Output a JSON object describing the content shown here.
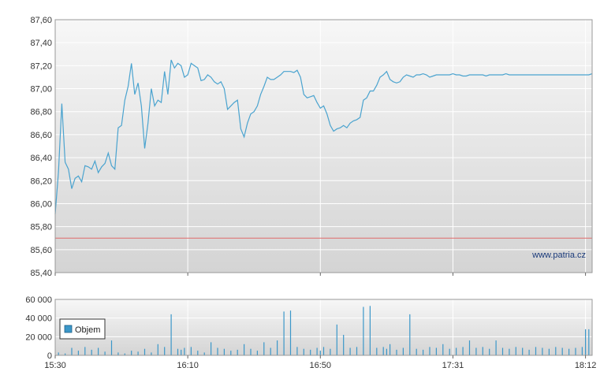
{
  "watermark": "www.patria.cz",
  "colors": {
    "price_line": "#4aa3cf",
    "reference_line": "#e06a6a",
    "volume_bar": "#3b97c9",
    "grid": "#ffffff",
    "plot_top": "#f7f7f7",
    "plot_bottom": "#d4d4d4"
  },
  "chart_data": [
    {
      "type": "line",
      "title": "",
      "xlabel": "",
      "ylabel": "",
      "ylim": [
        85.4,
        87.6
      ],
      "yticks": [
        "87,60",
        "87,40",
        "87,20",
        "87,00",
        "86,80",
        "86,60",
        "86,40",
        "86,20",
        "86,00",
        "85,80",
        "85,60",
        "85,40"
      ],
      "ytick_values": [
        87.6,
        87.4,
        87.2,
        87.0,
        86.8,
        86.6,
        86.4,
        86.2,
        86.0,
        85.8,
        85.6,
        85.4
      ],
      "xlim": [
        0,
        162
      ],
      "xtick_positions": [
        0,
        40,
        80,
        120,
        160
      ],
      "reference_value": 85.7,
      "grid": true,
      "series": [
        {
          "x": [
            0,
            1,
            2,
            3,
            4,
            5,
            6,
            7,
            8,
            9,
            10,
            11,
            12,
            13,
            14,
            15,
            16,
            17,
            18,
            19,
            20,
            21,
            22,
            23,
            24,
            25,
            26,
            27,
            28,
            29,
            30,
            31,
            32,
            33,
            34,
            35,
            36,
            37,
            38,
            39,
            40,
            41,
            42,
            43,
            44,
            45,
            46,
            47,
            48,
            49,
            50,
            51,
            52,
            53,
            54,
            55,
            56,
            57,
            58,
            59,
            60,
            61,
            62,
            63,
            64,
            65,
            66,
            67,
            68,
            69,
            70,
            71,
            72,
            73,
            74,
            75,
            76,
            77,
            78,
            79,
            80,
            81,
            82,
            83,
            84,
            85,
            86,
            87,
            88,
            89,
            90,
            91,
            92,
            93,
            94,
            95,
            96,
            97,
            98,
            99,
            100,
            101,
            102,
            103,
            104,
            105,
            106,
            107,
            108,
            109,
            110,
            111,
            112,
            113,
            114,
            115,
            116,
            117,
            118,
            119,
            120,
            121,
            122,
            123,
            124,
            125,
            126,
            127,
            128,
            129,
            130,
            131,
            132,
            133,
            134,
            135,
            136,
            137,
            138,
            139,
            140,
            141,
            142,
            143,
            144,
            145,
            146,
            147,
            148,
            149,
            150,
            151,
            152,
            153,
            154,
            155,
            156,
            157,
            158,
            159,
            160,
            161,
            162
          ],
          "values": [
            85.91,
            86.28,
            86.87,
            86.36,
            86.3,
            86.13,
            86.22,
            86.24,
            86.19,
            86.33,
            86.32,
            86.3,
            86.37,
            86.27,
            86.32,
            86.35,
            86.44,
            86.33,
            86.3,
            86.66,
            86.68,
            86.9,
            87.02,
            87.22,
            86.95,
            87.05,
            86.85,
            86.48,
            86.7,
            87.0,
            86.85,
            86.9,
            86.88,
            87.15,
            86.95,
            87.25,
            87.18,
            87.22,
            87.2,
            87.1,
            87.12,
            87.22,
            87.2,
            87.18,
            87.07,
            87.08,
            87.12,
            87.1,
            87.06,
            87.04,
            87.06,
            87.0,
            86.82,
            86.85,
            86.88,
            86.9,
            86.65,
            86.58,
            86.7,
            86.78,
            86.8,
            86.85,
            86.95,
            87.02,
            87.1,
            87.08,
            87.08,
            87.1,
            87.12,
            87.15,
            87.15,
            87.15,
            87.14,
            87.16,
            87.1,
            86.95,
            86.92,
            86.93,
            86.94,
            86.88,
            86.83,
            86.85,
            86.78,
            86.68,
            86.63,
            86.65,
            86.66,
            86.68,
            86.66,
            86.7,
            86.72,
            86.73,
            86.75,
            86.9,
            86.92,
            86.98,
            86.98,
            87.03,
            87.1,
            87.12,
            87.15,
            87.08,
            87.06,
            87.05,
            87.06,
            87.1,
            87.12,
            87.11,
            87.1,
            87.12,
            87.12,
            87.13,
            87.12,
            87.1,
            87.11,
            87.12,
            87.12,
            87.12,
            87.12,
            87.12,
            87.13,
            87.12,
            87.12,
            87.11,
            87.11,
            87.12,
            87.12,
            87.12,
            87.12,
            87.12,
            87.11,
            87.12,
            87.12,
            87.12,
            87.12,
            87.12,
            87.13,
            87.12,
            87.12,
            87.12,
            87.12,
            87.12,
            87.12,
            87.12,
            87.12,
            87.12,
            87.12,
            87.12,
            87.12,
            87.12,
            87.12,
            87.12,
            87.12,
            87.12,
            87.12,
            87.12,
            87.12,
            87.12,
            87.12,
            87.12,
            87.12,
            87.12,
            87.13
          ]
        }
      ]
    },
    {
      "type": "bar",
      "title": "",
      "xlabel": "",
      "ylabel": "",
      "ylim": [
        0,
        60000
      ],
      "yticks": [
        "60 000",
        "40 000",
        "20 000",
        "0"
      ],
      "ytick_values": [
        60000,
        40000,
        20000,
        0
      ],
      "xticks": [
        "15:30",
        "16:10",
        "16:50",
        "17:31",
        "18:12"
      ],
      "xtick_positions": [
        0,
        40,
        80,
        120,
        160
      ],
      "xlim": [
        0,
        162
      ],
      "legend": {
        "label": "Objem",
        "placement": "bottom-left"
      },
      "grid": true,
      "series": [
        {
          "name": "Objem",
          "x": [
            1,
            3,
            5,
            7,
            9,
            11,
            13,
            15,
            17,
            19,
            21,
            23,
            25,
            27,
            29,
            31,
            33,
            35,
            37,
            38,
            39,
            41,
            43,
            45,
            47,
            49,
            51,
            53,
            55,
            57,
            59,
            61,
            63,
            65,
            67,
            69,
            71,
            73,
            75,
            77,
            79,
            80,
            81,
            83,
            85,
            87,
            89,
            91,
            93,
            95,
            97,
            99,
            100,
            101,
            103,
            105,
            107,
            109,
            111,
            113,
            115,
            117,
            119,
            121,
            123,
            125,
            127,
            129,
            131,
            133,
            135,
            137,
            139,
            141,
            143,
            145,
            147,
            149,
            151,
            153,
            155,
            157,
            159,
            160,
            161
          ],
          "values": [
            3000,
            2000,
            8000,
            5000,
            9000,
            6000,
            8000,
            4000,
            16000,
            3000,
            2000,
            5000,
            4000,
            7000,
            3000,
            12000,
            9000,
            44000,
            7000,
            6000,
            8000,
            9000,
            5000,
            3000,
            14000,
            8000,
            7000,
            5000,
            6000,
            12000,
            7000,
            5000,
            14000,
            8000,
            16000,
            47000,
            48000,
            9000,
            7000,
            6000,
            8000,
            5000,
            9000,
            7000,
            33000,
            22000,
            8000,
            9000,
            52000,
            53000,
            8000,
            9000,
            7000,
            12000,
            6000,
            8000,
            44000,
            7000,
            6000,
            9000,
            8000,
            12000,
            7000,
            8000,
            9000,
            16000,
            8000,
            9000,
            7000,
            16000,
            8000,
            7000,
            9000,
            8000,
            6000,
            9000,
            8000,
            7000,
            9000,
            8000,
            7000,
            8000,
            9000,
            28000,
            28000
          ]
        }
      ]
    }
  ]
}
